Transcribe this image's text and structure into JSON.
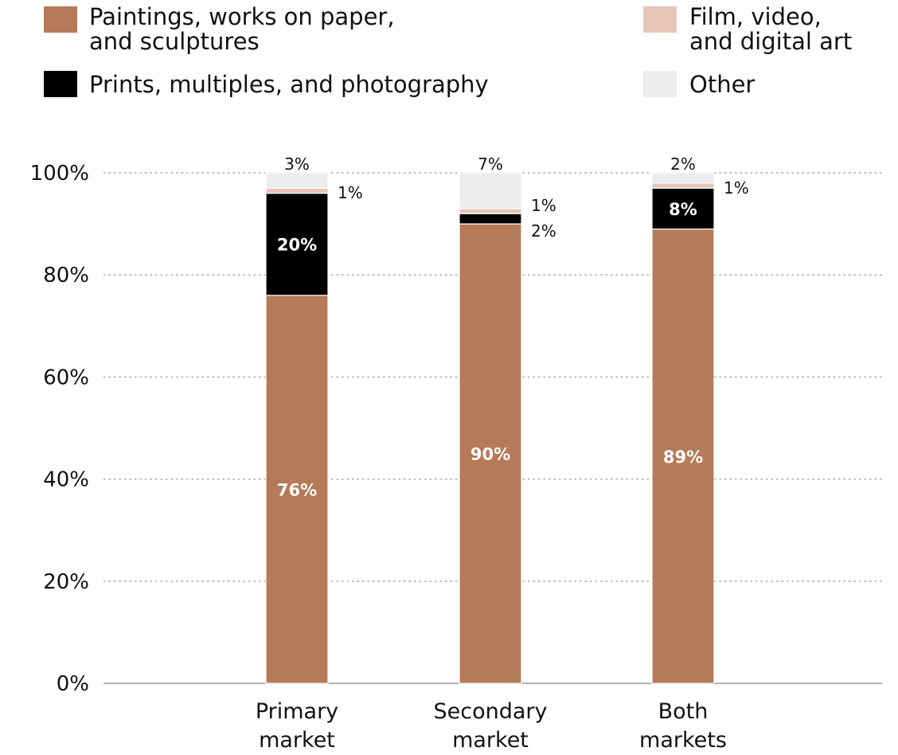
{
  "chart_data": {
    "type": "bar",
    "stacked": true,
    "categories": [
      [
        "Primary",
        "market"
      ],
      [
        "Secondary",
        "market"
      ],
      [
        "Both",
        "markets"
      ]
    ],
    "ylim": [
      0,
      100
    ],
    "yticks": [
      "0%",
      "20%",
      "40%",
      "60%",
      "80%",
      "100%"
    ],
    "grid": true,
    "legend_position": "top",
    "series": [
      {
        "name_lines": [
          "Paintings, works on paper,",
          "and sculptures"
        ],
        "color": "#b57a57",
        "values": [
          76,
          90,
          89
        ],
        "labels": [
          "76%",
          "90%",
          "89%"
        ],
        "label_style": "inside"
      },
      {
        "name_lines": [
          "Prints, multiples, and photography"
        ],
        "color": "#000000",
        "values": [
          20,
          2,
          8
        ],
        "labels": [
          "20%",
          "2%",
          "8%"
        ],
        "label_style": [
          "inside",
          "outside",
          "inside"
        ]
      },
      {
        "name_lines": [
          "Film, video,",
          "and digital art"
        ],
        "color": "#e6c5b6",
        "values": [
          1,
          1,
          1
        ],
        "labels": [
          "1%",
          "1%",
          "1%"
        ],
        "label_style": "outside"
      },
      {
        "name_lines": [
          "Other"
        ],
        "color": "#ececec",
        "values": [
          3,
          7,
          2
        ],
        "labels": [
          "3%",
          "7%",
          "2%"
        ],
        "label_style": "top"
      }
    ]
  }
}
